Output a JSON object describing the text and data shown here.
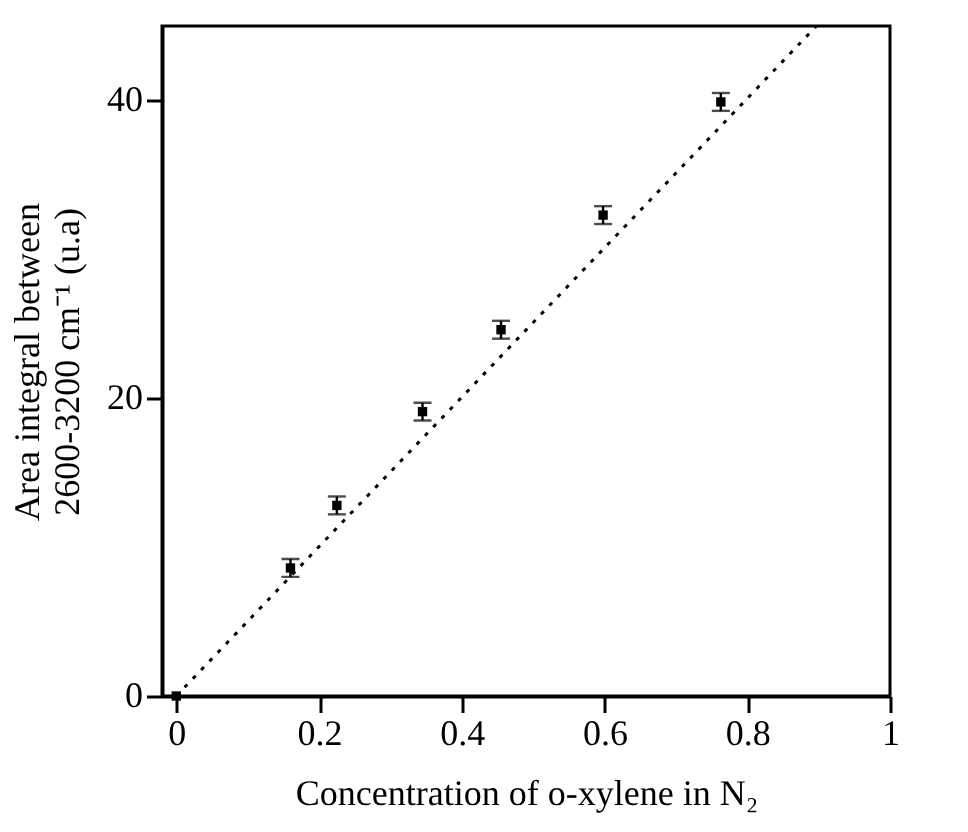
{
  "chart_data": {
    "type": "scatter",
    "xlabel": "Concentration of o-xylene in N₂",
    "ylabel": "Area integral between\n2600-3200 cm⁻¹ (u.a)",
    "xlim": [
      -0.02,
      1.0
    ],
    "ylim": [
      0,
      45
    ],
    "xticks": [
      0,
      0.2,
      0.4,
      0.6,
      0.8,
      1
    ],
    "yticks": [
      0,
      20,
      40
    ],
    "grid": false,
    "series": [
      {
        "color": "#000000",
        "marker": "square",
        "x": [
          0,
          0.16,
          0.225,
          0.345,
          0.455,
          0.598,
          0.763
        ],
        "values": [
          0,
          8.6,
          12.8,
          19.1,
          24.6,
          32.3,
          39.9
        ],
        "errors": [
          null,
          0.6,
          0.6,
          0.6,
          0.6,
          0.6,
          0.6
        ]
      },
      {
        "type": "line",
        "color": "#000000",
        "line_style": "dotted",
        "x": [
          0,
          0.897
        ],
        "values": [
          0,
          45
        ]
      }
    ]
  }
}
